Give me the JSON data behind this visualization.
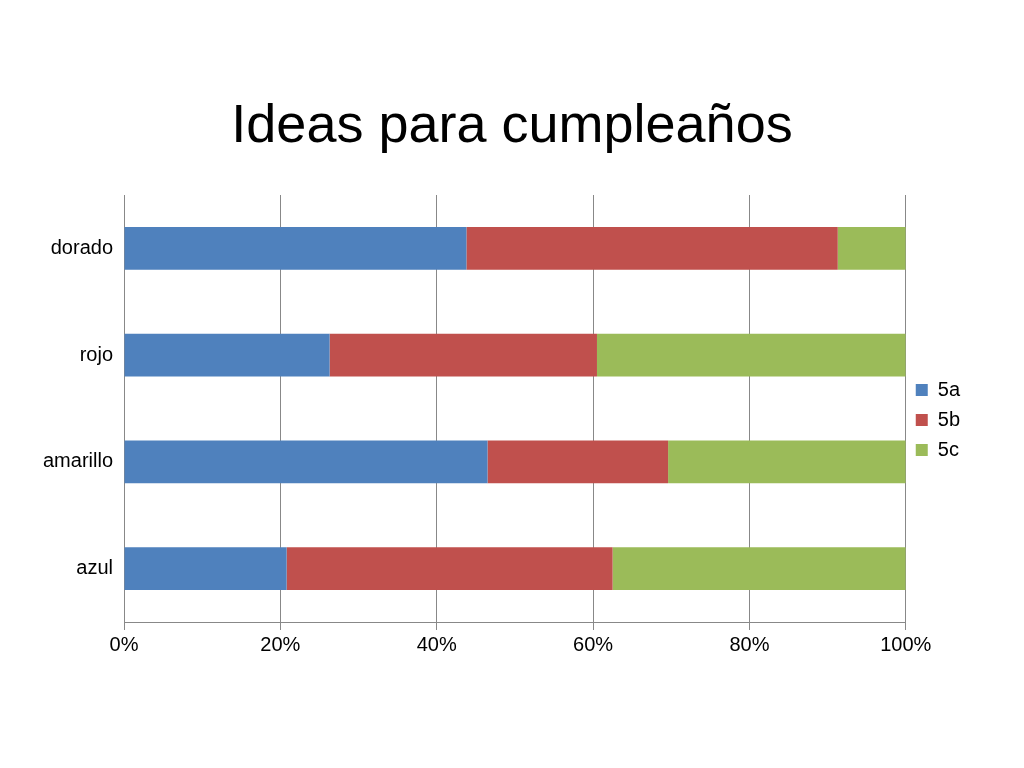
{
  "chart_data": {
    "type": "bar",
    "orientation": "horizontal",
    "stacked": true,
    "title": "Ideas para cumpleaños",
    "categories": [
      "dorado",
      "rojo",
      "amarillo",
      "azul"
    ],
    "series": [
      {
        "name": "5a",
        "color": "#4f81bd",
        "values": [
          43.8,
          26.3,
          46.5,
          20.8
        ]
      },
      {
        "name": "5b",
        "color": "#c0504d",
        "values": [
          47.5,
          34.2,
          23.1,
          41.7
        ]
      },
      {
        "name": "5c",
        "color": "#9bbb59",
        "values": [
          8.7,
          39.5,
          30.4,
          37.5
        ]
      }
    ],
    "xlim": [
      0,
      100
    ],
    "xticks": [
      {
        "value": 0,
        "label": "0%"
      },
      {
        "value": 20,
        "label": "20%"
      },
      {
        "value": 40,
        "label": "40%"
      },
      {
        "value": 60,
        "label": "60%"
      },
      {
        "value": 80,
        "label": "80%"
      },
      {
        "value": 100,
        "label": "100%"
      }
    ],
    "grid": "x",
    "legend": "right"
  }
}
